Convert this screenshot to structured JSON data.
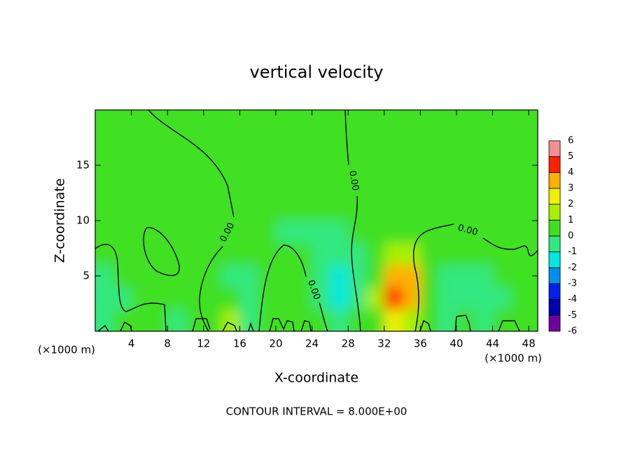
{
  "chart_data": {
    "type": "contour",
    "title": "vertical velocity",
    "x_label": "X-coordinate",
    "y_label": "Z-coordinate",
    "x_unit": "(×1000 m)",
    "y_unit": "(×1000 m)",
    "annotation": "CONTOUR INTERVAL = 8.000E+00",
    "contour_labels": [
      "0.00",
      "0.00",
      "0.00",
      "0.00"
    ],
    "xlim": [
      0,
      49
    ],
    "ylim": [
      0,
      20
    ],
    "xticks": [
      4,
      8,
      12,
      16,
      20,
      24,
      28,
      32,
      36,
      40,
      44,
      48
    ],
    "yticks": [
      5,
      10,
      15
    ],
    "x": [
      1,
      3,
      5,
      7,
      9,
      11,
      13,
      15,
      17,
      19,
      21,
      23,
      25,
      27,
      29,
      31,
      33,
      35,
      37,
      39,
      41,
      43,
      45,
      47,
      49
    ],
    "y": [
      1,
      3,
      5,
      7,
      9,
      11,
      13,
      15,
      17,
      19
    ],
    "values": [
      [
        -0.5,
        0.2,
        0.2,
        0.2,
        -0.2,
        0.5,
        0.3,
        1.5,
        -0.3,
        0.3,
        0.3,
        0.3,
        0.3,
        -0.6,
        0,
        0.8,
        2.5,
        1.5,
        0,
        -0.3,
        0,
        -0.5,
        0.2,
        0,
        0
      ],
      [
        -0.8,
        -0.3,
        0.5,
        0.5,
        0.8,
        0.8,
        0.2,
        0.2,
        -0.4,
        0.5,
        0.5,
        0.5,
        -0.6,
        -1.3,
        -0.4,
        1.0,
        4.5,
        3.0,
        0,
        -0.5,
        -0.5,
        -0.8,
        -0.3,
        0,
        0
      ],
      [
        -0.3,
        0.8,
        0.8,
        0.8,
        0.3,
        0.3,
        0.1,
        -0.3,
        -0.3,
        0.7,
        0.7,
        0.7,
        -0.5,
        -1.5,
        -0.5,
        0.8,
        3.0,
        3.5,
        0.5,
        -0.2,
        -0.2,
        -0.2,
        0,
        0.2,
        0.2
      ],
      [
        0.3,
        0.3,
        0.3,
        0.9,
        0.5,
        0.5,
        0.2,
        0.2,
        0,
        0.6,
        0.6,
        0.6,
        -0.5,
        -0.5,
        -0.5,
        0.5,
        1.5,
        1.5,
        0.5,
        0.1,
        0.1,
        0.1,
        0.1,
        0.1,
        0.1
      ],
      [
        0.5,
        0.5,
        0.5,
        0.5,
        0.8,
        0.8,
        0.8,
        0.2,
        0.2,
        0.2,
        -0.2,
        -0.2,
        -0.2,
        -0.2,
        0.2,
        0.7,
        0.7,
        0.7,
        0.2,
        0.2,
        0.2,
        0.2,
        0.2,
        0.2,
        0.2
      ],
      [
        0.5,
        0.5,
        0.5,
        0.5,
        0.9,
        0.9,
        0.9,
        0.5,
        0,
        0,
        0,
        0,
        0,
        0,
        0,
        0.3,
        0.3,
        0.3,
        0.5,
        0.5,
        0.5,
        0.5,
        0.5,
        0.5,
        0.5
      ],
      [
        0.5,
        0.5,
        0.5,
        0.5,
        0.8,
        0.8,
        0.8,
        0.5,
        0.1,
        0.1,
        0.1,
        0.1,
        0.1,
        0.1,
        0.5,
        0.5,
        0.5,
        0.5,
        0.5,
        0.5,
        0.5,
        0.5,
        0.5,
        0.5,
        0.5
      ],
      [
        0.5,
        0.5,
        0.5,
        0.5,
        0.5,
        0.5,
        0.5,
        0.5,
        0.2,
        0.2,
        0.2,
        0.2,
        0.2,
        0.2,
        0.5,
        0.5,
        0.5,
        0.5,
        0.5,
        0.5,
        0.5,
        0.5,
        0.5,
        0.5,
        0.5
      ],
      [
        0.5,
        0.5,
        0.5,
        0.5,
        0.5,
        0.5,
        0.5,
        0.5,
        0.5,
        0.5,
        0.5,
        0.5,
        0.5,
        0.5,
        0.5,
        0.5,
        0.5,
        0.5,
        0.5,
        0.5,
        0.5,
        0.5,
        0.5,
        0.5,
        0.5
      ],
      [
        0.5,
        0.5,
        0.5,
        0.5,
        0.5,
        0.5,
        0.5,
        0.5,
        0.5,
        0.5,
        0.5,
        0.5,
        0.5,
        0.5,
        0.5,
        0.5,
        0.5,
        0.5,
        0.5,
        0.5,
        0.5,
        0.5,
        0.5,
        0.5,
        0.5
      ]
    ],
    "colorbar": {
      "ticks": [
        -6,
        -5,
        -4,
        -3,
        -2,
        -1,
        0,
        1,
        2,
        3,
        4,
        5,
        6
      ],
      "colors": [
        "#7000a0",
        "#0000b0",
        "#0020f0",
        "#0090f0",
        "#00e8e0",
        "#30e880",
        "#40e020",
        "#a8f000",
        "#f0f000",
        "#ffb000",
        "#ff2000",
        "#f09090"
      ]
    }
  }
}
